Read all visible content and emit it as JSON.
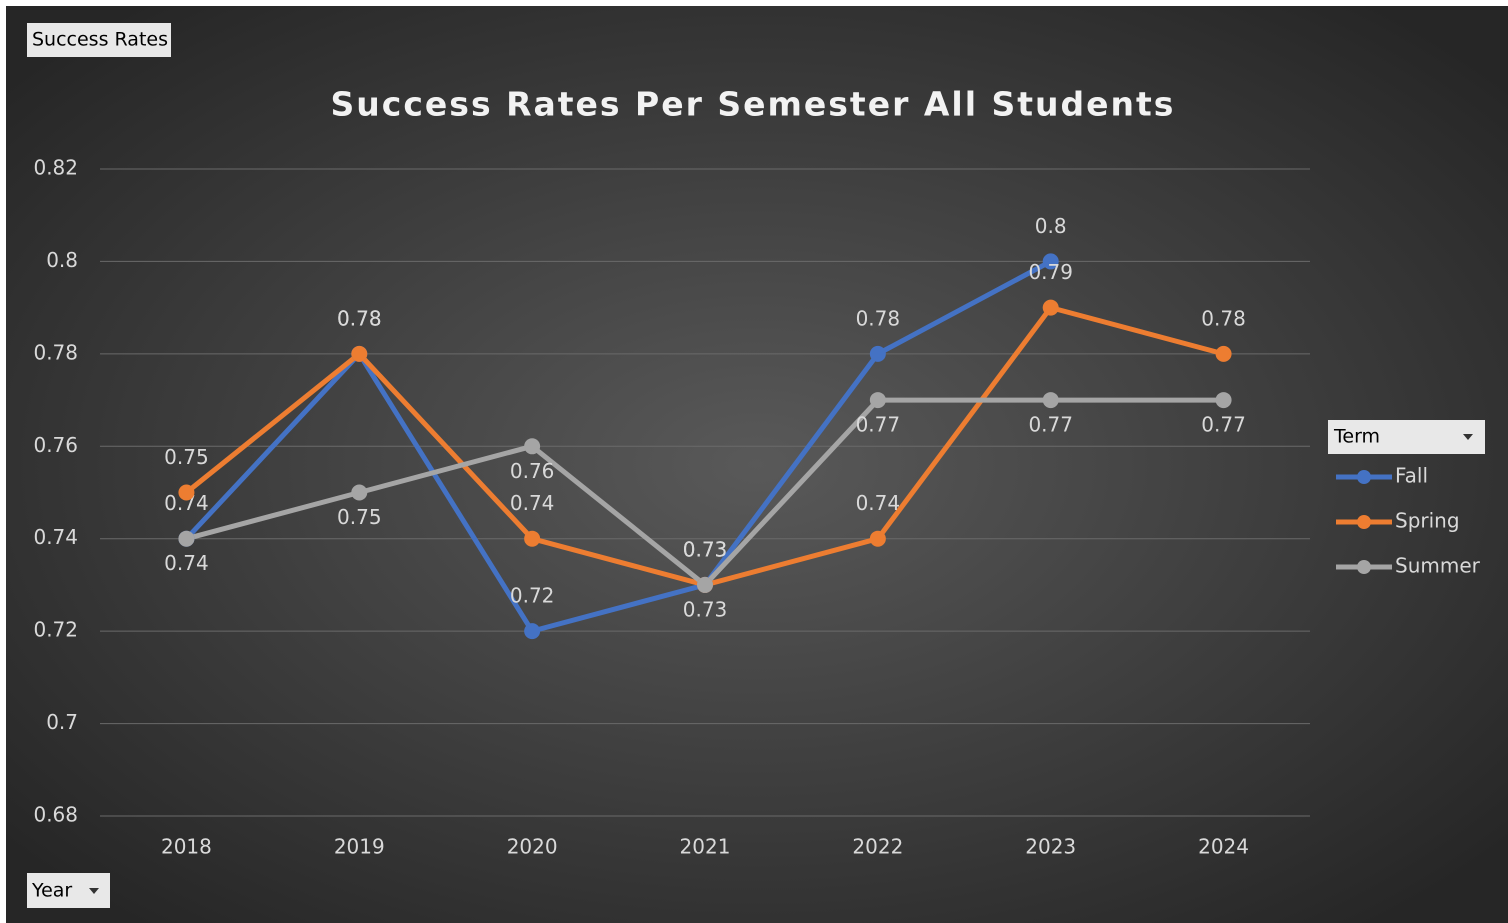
{
  "chart_data": {
    "type": "line",
    "title": "Success Rates Per Semester All Students",
    "categories": [
      "2018",
      "2019",
      "2020",
      "2021",
      "2022",
      "2023",
      "2024"
    ],
    "series": [
      {
        "name": "Fall",
        "color": "#4472c4",
        "values": [
          0.74,
          0.78,
          0.72,
          0.73,
          0.78,
          0.8,
          null
        ]
      },
      {
        "name": "Spring",
        "color": "#ed7d31",
        "values": [
          0.75,
          0.78,
          0.74,
          0.73,
          0.74,
          0.79,
          0.78
        ]
      },
      {
        "name": "Summer",
        "color": "#a5a5a5",
        "values": [
          0.74,
          0.75,
          0.76,
          0.73,
          0.77,
          0.77,
          0.77
        ]
      }
    ],
    "ylim": [
      0.68,
      0.82
    ],
    "yticks": [
      0.68,
      0.7,
      0.72,
      0.74,
      0.76,
      0.78,
      0.8,
      0.82
    ],
    "grid": true,
    "legend": "right"
  },
  "field_buttons": {
    "values": "Success Rates",
    "axis": "Year",
    "legend": "Term"
  }
}
